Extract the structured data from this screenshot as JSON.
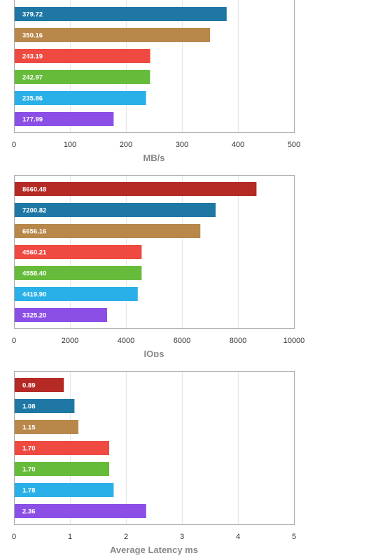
{
  "chart_data": [
    {
      "type": "bar",
      "orientation": "horizontal",
      "xlabel": "MB/s",
      "xlim": [
        0,
        500
      ],
      "ticks": [
        "0",
        "100",
        "200",
        "300",
        "400",
        "500"
      ],
      "grid": true,
      "values": [
        379.72,
        350.16,
        243.19,
        242.97,
        235.86,
        177.99
      ],
      "data_labels": [
        "379.72",
        "350.16",
        "243.19",
        "242.97",
        "235.86",
        "177.99"
      ],
      "colors": [
        "#1f77a4",
        "#b8874a",
        "#ef4a41",
        "#66bb3a",
        "#2ab0e8",
        "#8c4fe6"
      ]
    },
    {
      "type": "bar",
      "orientation": "horizontal",
      "xlabel": "IOps",
      "xlim": [
        0,
        10000
      ],
      "ticks": [
        "0",
        "2000",
        "4000",
        "6000",
        "8000",
        "10000"
      ],
      "grid": true,
      "values": [
        8660.48,
        7200.82,
        6656.16,
        4560.21,
        4558.4,
        4419.9,
        3325.2
      ],
      "data_labels": [
        "8660.48",
        "7200.82",
        "6656.16",
        "4560.21",
        "4558.40",
        "4419.90",
        "3325.20"
      ],
      "colors": [
        "#b52a25",
        "#1f77a4",
        "#b8874a",
        "#ef4a41",
        "#66bb3a",
        "#2ab0e8",
        "#8c4fe6"
      ]
    },
    {
      "type": "bar",
      "orientation": "horizontal",
      "xlabel": "Average Latency ms",
      "xlim": [
        0,
        5
      ],
      "ticks": [
        "0",
        "1",
        "2",
        "3",
        "4",
        "5"
      ],
      "grid": true,
      "values": [
        0.89,
        1.08,
        1.15,
        1.7,
        1.7,
        1.78,
        2.36
      ],
      "data_labels": [
        "0.89",
        "1.08",
        "1.15",
        "1.70",
        "1.70",
        "1.78",
        "2.36"
      ],
      "colors": [
        "#b52a25",
        "#1f77a4",
        "#b8874a",
        "#ef4a41",
        "#66bb3a",
        "#2ab0e8",
        "#8c4fe6"
      ]
    }
  ]
}
